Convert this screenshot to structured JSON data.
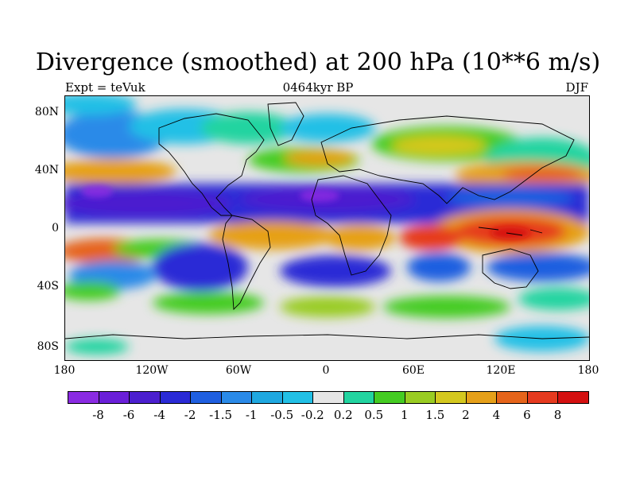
{
  "title": "Divergence (smoothed) at 200 hPa (10**6 m/s)",
  "subtitle_left": "Expt = teVuk",
  "subtitle_center": "0464kyr BP",
  "subtitle_right": "DJF",
  "axes": {
    "lat_labels": [
      "80N",
      "40N",
      "0",
      "40S",
      "80S"
    ],
    "lon_labels": [
      "180",
      "120W",
      "60W",
      "0",
      "60E",
      "120E",
      "180"
    ]
  },
  "colorbar": {
    "labels": [
      "-8",
      "-6",
      "-4",
      "-2",
      "-1.5",
      "-1",
      "-0.5",
      "-0.2",
      "0.2",
      "0.5",
      "1",
      "1.5",
      "2",
      "4",
      "6",
      "8"
    ],
    "colors": [
      "#8a2be2",
      "#6a1fd9",
      "#4b1fcf",
      "#2a2ad6",
      "#1f5fe0",
      "#2a8ae8",
      "#1fa8e0",
      "#22c0e6",
      "#e6e6e6",
      "#22d4a0",
      "#44cc22",
      "#99cc22",
      "#d4c81f",
      "#e6a019",
      "#e6641a",
      "#e63a1f",
      "#d41010"
    ]
  }
}
